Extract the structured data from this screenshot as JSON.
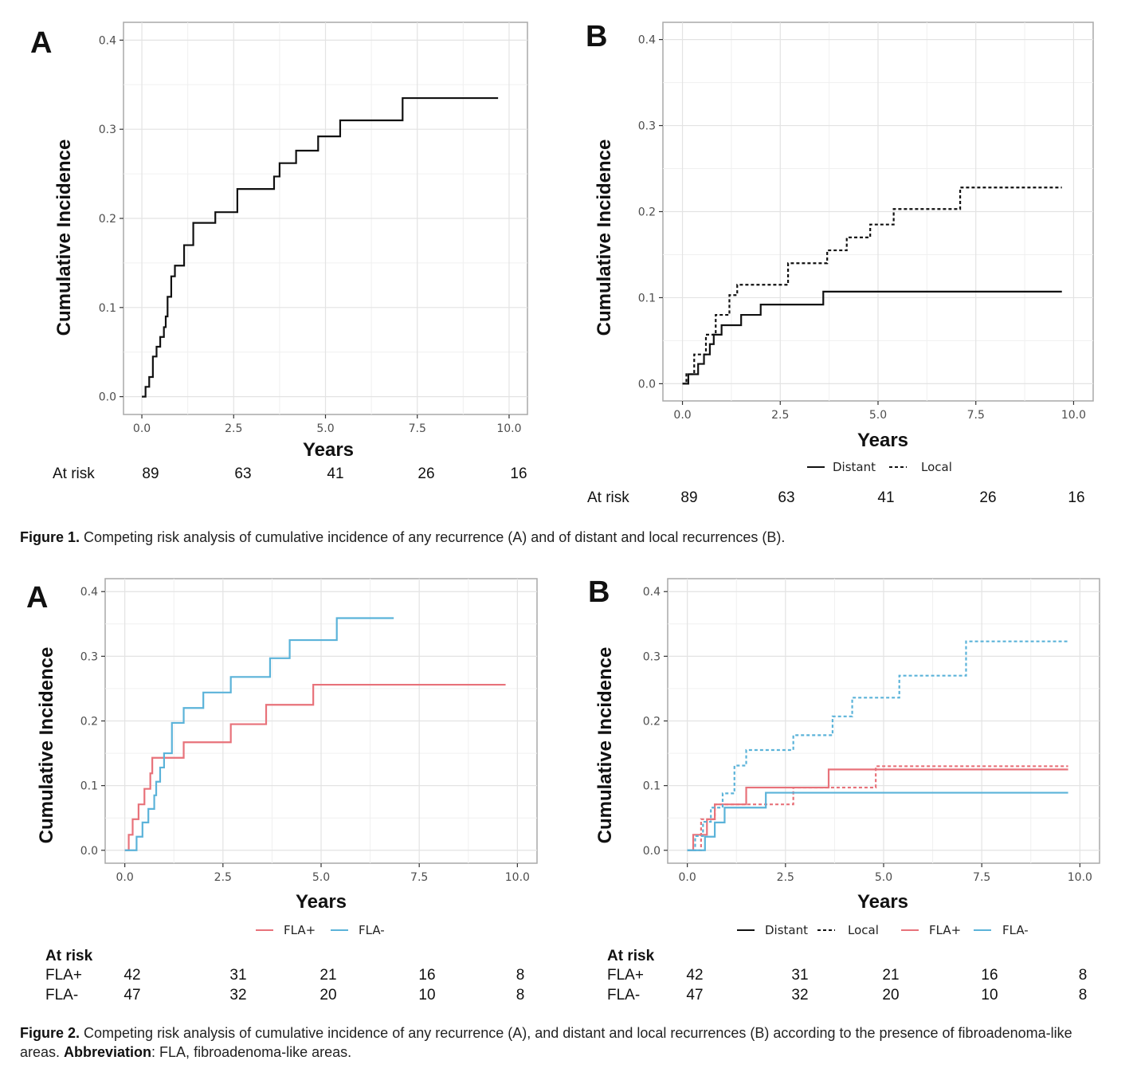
{
  "figure1": {
    "caption_label": "Figure 1.",
    "caption_text": " Competing risk analysis of cumulative incidence of any recurrence (A) and of distant and local recurrences (B)."
  },
  "figure2": {
    "caption_label": "Figure 2.",
    "caption_text": " Competing risk analysis of cumulative incidence of any recurrence (A), and distant and local recurrences (B) according to the presence of fibroadenoma-like areas. ",
    "abbrev_label": "Abbreviation",
    "abbrev_text": ": FLA, fibroadenoma-like areas."
  },
  "colors": {
    "fla_plus": "#e8727a",
    "fla_minus": "#5bb3d9",
    "black": "#111111"
  },
  "chart_data": [
    {
      "id": "fig1a",
      "panel_label": "A",
      "type": "line",
      "step": true,
      "xlabel": "Years",
      "ylabel": "Cumulative Incidence",
      "xlim": [
        0,
        10
      ],
      "ylim": [
        0,
        0.4
      ],
      "xticks": [
        "0.0",
        "2.5",
        "5.0",
        "7.5",
        "10.0"
      ],
      "yticks": [
        "0.0",
        "0.1",
        "0.2",
        "0.3",
        "0.4"
      ],
      "grid": true,
      "legend": [],
      "series": [
        {
          "color": "#111111",
          "dash": "solid",
          "x": [
            0,
            0.1,
            0.2,
            0.3,
            0.4,
            0.5,
            0.6,
            0.65,
            0.7,
            0.8,
            0.9,
            1.15,
            1.4,
            2.0,
            2.6,
            3.6,
            3.75,
            4.2,
            4.8,
            5.4,
            7.1,
            9.7
          ],
          "y": [
            0,
            0.011,
            0.022,
            0.045,
            0.056,
            0.067,
            0.078,
            0.09,
            0.112,
            0.135,
            0.147,
            0.17,
            0.195,
            0.207,
            0.233,
            0.247,
            0.262,
            0.276,
            0.292,
            0.31,
            0.335,
            0.335
          ]
        }
      ],
      "at_risk": {
        "title": "At risk",
        "rows": [
          {
            "label": "",
            "values": [
              "89",
              "63",
              "41",
              "26",
              "16"
            ]
          }
        ]
      }
    },
    {
      "id": "fig1b",
      "panel_label": "B",
      "type": "line",
      "step": true,
      "xlabel": "Years",
      "ylabel": "Cumulative Incidence",
      "xlim": [
        0,
        10
      ],
      "ylim": [
        0,
        0.4
      ],
      "xticks": [
        "0.0",
        "2.5",
        "5.0",
        "7.5",
        "10.0"
      ],
      "yticks": [
        "0.0",
        "0.1",
        "0.2",
        "0.3",
        "0.4"
      ],
      "grid": true,
      "legend": [
        {
          "label": "Distant",
          "color": "#111111",
          "dash": "solid"
        },
        {
          "label": "Local",
          "color": "#111111",
          "dash": "dash"
        }
      ],
      "series": [
        {
          "name": "Distant",
          "color": "#111111",
          "dash": "solid",
          "x": [
            0,
            0.15,
            0.4,
            0.55,
            0.7,
            0.8,
            1.0,
            1.5,
            2.0,
            3.6,
            9.7
          ],
          "y": [
            0,
            0.011,
            0.023,
            0.034,
            0.046,
            0.057,
            0.068,
            0.08,
            0.092,
            0.107,
            0.107
          ]
        },
        {
          "name": "Local",
          "color": "#111111",
          "dash": "dash",
          "x": [
            0,
            0.1,
            0.3,
            0.6,
            0.85,
            1.2,
            1.4,
            2.7,
            3.7,
            4.2,
            4.8,
            5.4,
            7.1,
            9.7
          ],
          "y": [
            0,
            0.011,
            0.034,
            0.057,
            0.08,
            0.103,
            0.115,
            0.14,
            0.155,
            0.17,
            0.185,
            0.203,
            0.228,
            0.228
          ]
        }
      ],
      "at_risk": {
        "title": "At risk",
        "rows": [
          {
            "label": "",
            "values": [
              "89",
              "63",
              "41",
              "26",
              "16"
            ]
          }
        ]
      }
    },
    {
      "id": "fig2a",
      "panel_label": "A",
      "type": "line",
      "step": true,
      "xlabel": "Years",
      "ylabel": "Cumulative Incidence",
      "xlim": [
        0,
        10
      ],
      "ylim": [
        0,
        0.4
      ],
      "xticks": [
        "0.0",
        "2.5",
        "5.0",
        "7.5",
        "10.0"
      ],
      "yticks": [
        "0.0",
        "0.1",
        "0.2",
        "0.3",
        "0.4"
      ],
      "grid": true,
      "legend": [
        {
          "label": "FLA+",
          "color": "#e8727a",
          "dash": "solid"
        },
        {
          "label": "FLA-",
          "color": "#5bb3d9",
          "dash": "solid"
        }
      ],
      "series": [
        {
          "name": "FLA+",
          "color": "#e8727a",
          "dash": "solid",
          "x": [
            0,
            0.1,
            0.2,
            0.35,
            0.5,
            0.65,
            0.7,
            1.5,
            2.7,
            3.6,
            4.8,
            9.7
          ],
          "y": [
            0,
            0.024,
            0.048,
            0.071,
            0.095,
            0.119,
            0.143,
            0.167,
            0.195,
            0.225,
            0.256,
            0.256
          ]
        },
        {
          "name": "FLA-",
          "color": "#5bb3d9",
          "dash": "solid",
          "x": [
            0,
            0.3,
            0.45,
            0.6,
            0.75,
            0.8,
            0.9,
            1.0,
            1.2,
            1.5,
            2.0,
            2.7,
            3.7,
            4.2,
            5.4,
            6.85
          ],
          "y": [
            0,
            0.021,
            0.043,
            0.064,
            0.085,
            0.106,
            0.128,
            0.15,
            0.197,
            0.22,
            0.244,
            0.268,
            0.297,
            0.325,
            0.359,
            0.359
          ]
        }
      ],
      "at_risk": {
        "title": "At risk",
        "rows": [
          {
            "label": "FLA+",
            "values": [
              "42",
              "31",
              "21",
              "16",
              "8"
            ]
          },
          {
            "label": "FLA-",
            "values": [
              "47",
              "32",
              "20",
              "10",
              "8"
            ]
          }
        ]
      }
    },
    {
      "id": "fig2b",
      "panel_label": "B",
      "type": "line",
      "step": true,
      "xlabel": "Years",
      "ylabel": "Cumulative Incidence",
      "xlim": [
        0,
        10
      ],
      "ylim": [
        0,
        0.4
      ],
      "xticks": [
        "0.0",
        "2.5",
        "5.0",
        "7.5",
        "10.0"
      ],
      "yticks": [
        "0.0",
        "0.1",
        "0.2",
        "0.3",
        "0.4"
      ],
      "grid": true,
      "legend": [
        {
          "label": "Distant",
          "color": "#111111",
          "dash": "solid"
        },
        {
          "label": "Local",
          "color": "#111111",
          "dash": "dash"
        },
        {
          "label": "FLA+",
          "color": "#e8727a",
          "dash": "solid"
        },
        {
          "label": "FLA-",
          "color": "#5bb3d9",
          "dash": "solid"
        }
      ],
      "series": [
        {
          "name": "FLA+ Distant",
          "color": "#e8727a",
          "dash": "solid",
          "x": [
            0,
            0.15,
            0.5,
            0.7,
            1.5,
            3.6,
            9.7
          ],
          "y": [
            0,
            0.024,
            0.048,
            0.071,
            0.097,
            0.125,
            0.125
          ]
        },
        {
          "name": "FLA+ Local",
          "color": "#e8727a",
          "dash": "dash",
          "x": [
            0,
            0.35,
            0.7,
            2.7,
            4.8,
            9.7
          ],
          "y": [
            0,
            0.048,
            0.071,
            0.097,
            0.13,
            0.13
          ]
        },
        {
          "name": "FLA- Distant",
          "color": "#5bb3d9",
          "dash": "solid",
          "x": [
            0,
            0.45,
            0.7,
            0.95,
            2.0,
            9.7
          ],
          "y": [
            0,
            0.021,
            0.043,
            0.066,
            0.089,
            0.089
          ]
        },
        {
          "name": "FLA- Local",
          "color": "#5bb3d9",
          "dash": "dash",
          "x": [
            0,
            0.2,
            0.4,
            0.6,
            0.9,
            1.2,
            1.5,
            2.7,
            3.7,
            4.2,
            5.4,
            7.1,
            9.7
          ],
          "y": [
            0,
            0.022,
            0.044,
            0.066,
            0.088,
            0.131,
            0.155,
            0.178,
            0.207,
            0.236,
            0.27,
            0.323,
            0.323
          ]
        }
      ],
      "at_risk": {
        "title": "At risk",
        "rows": [
          {
            "label": "FLA+",
            "values": [
              "42",
              "31",
              "21",
              "16",
              "8"
            ]
          },
          {
            "label": "FLA-",
            "values": [
              "47",
              "32",
              "20",
              "10",
              "8"
            ]
          }
        ]
      }
    }
  ]
}
